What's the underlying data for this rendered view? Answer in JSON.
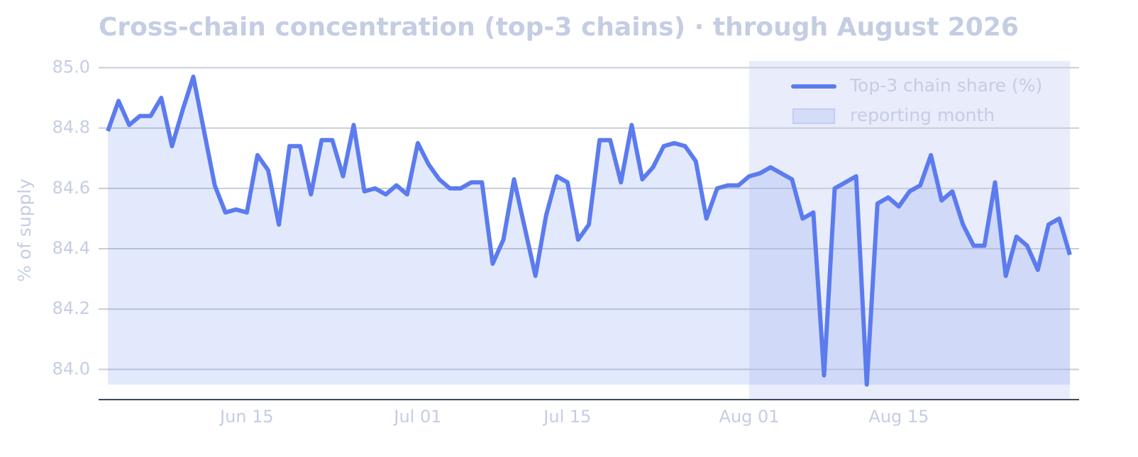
{
  "chart_data": {
    "type": "line",
    "title": "Cross-chain concentration (top-3 chains) · through August 2026",
    "y_label": "% of supply",
    "x": [
      "2026-06-02",
      "2026-06-03",
      "2026-06-04",
      "2026-06-05",
      "2026-06-06",
      "2026-06-07",
      "2026-06-08",
      "2026-06-09",
      "2026-06-10",
      "2026-06-11",
      "2026-06-12",
      "2026-06-13",
      "2026-06-14",
      "2026-06-15",
      "2026-06-16",
      "2026-06-17",
      "2026-06-18",
      "2026-06-19",
      "2026-06-20",
      "2026-06-21",
      "2026-06-22",
      "2026-06-23",
      "2026-06-24",
      "2026-06-25",
      "2026-06-26",
      "2026-06-27",
      "2026-06-28",
      "2026-06-29",
      "2026-06-30",
      "2026-07-01",
      "2026-07-02",
      "2026-07-03",
      "2026-07-04",
      "2026-07-05",
      "2026-07-06",
      "2026-07-07",
      "2026-07-08",
      "2026-07-09",
      "2026-07-10",
      "2026-07-11",
      "2026-07-12",
      "2026-07-13",
      "2026-07-14",
      "2026-07-15",
      "2026-07-16",
      "2026-07-17",
      "2026-07-18",
      "2026-07-19",
      "2026-07-20",
      "2026-07-21",
      "2026-07-22",
      "2026-07-23",
      "2026-07-24",
      "2026-07-25",
      "2026-07-26",
      "2026-07-27",
      "2026-07-28",
      "2026-07-29",
      "2026-07-30",
      "2026-07-31",
      "2026-08-01",
      "2026-08-02",
      "2026-08-03",
      "2026-08-04",
      "2026-08-05",
      "2026-08-06",
      "2026-08-07",
      "2026-08-08",
      "2026-08-09",
      "2026-08-10",
      "2026-08-11",
      "2026-08-12",
      "2026-08-13",
      "2026-08-14",
      "2026-08-15",
      "2026-08-16",
      "2026-08-17",
      "2026-08-18",
      "2026-08-19",
      "2026-08-20",
      "2026-08-21",
      "2026-08-22",
      "2026-08-23",
      "2026-08-24",
      "2026-08-25",
      "2026-08-26",
      "2026-08-27",
      "2026-08-28",
      "2026-08-29",
      "2026-08-30",
      "2026-08-31"
    ],
    "series": [
      {
        "name": "Top-3 chain share (%)",
        "color": "#5b7bef",
        "values": [
          84.79,
          84.89,
          84.81,
          84.84,
          84.84,
          84.9,
          84.74,
          84.86,
          84.97,
          84.79,
          84.61,
          84.52,
          84.53,
          84.52,
          84.71,
          84.66,
          84.48,
          84.74,
          84.74,
          84.58,
          84.76,
          84.76,
          84.64,
          84.81,
          84.59,
          84.6,
          84.58,
          84.61,
          84.58,
          84.75,
          84.68,
          84.63,
          84.6,
          84.6,
          84.62,
          84.62,
          84.35,
          84.43,
          84.63,
          84.47,
          84.31,
          84.51,
          84.64,
          84.62,
          84.43,
          84.48,
          84.76,
          84.76,
          84.62,
          84.81,
          84.63,
          84.67,
          84.74,
          84.75,
          84.74,
          84.69,
          84.5,
          84.6,
          84.61,
          84.61,
          84.64,
          84.65,
          84.67,
          84.65,
          84.63,
          84.5,
          84.52,
          83.98,
          84.6,
          84.62,
          84.64,
          83.95,
          84.55,
          84.57,
          84.54,
          84.59,
          84.61,
          84.71,
          84.56,
          84.59,
          84.48,
          84.41,
          84.41,
          84.62,
          84.31,
          84.44,
          84.41,
          84.33,
          84.48,
          84.5,
          84.38
        ]
      }
    ],
    "highlight": {
      "start": "2026-08-01",
      "end": "2026-08-31",
      "label": "reporting month",
      "color": "#d5dcf8"
    },
    "xticks": [
      {
        "value": "2026-06-15",
        "label": "Jun 15"
      },
      {
        "value": "2026-07-01",
        "label": "Jul 01"
      },
      {
        "value": "2026-07-15",
        "label": "Jul 15"
      },
      {
        "value": "2026-08-01",
        "label": "Aug 01"
      },
      {
        "value": "2026-08-15",
        "label": "Aug 15"
      }
    ],
    "ylim": [
      83.9,
      85.02
    ],
    "yticks": [
      {
        "value": 84,
        "label": "84.0"
      },
      84.2,
      84.4,
      84.6,
      84.8,
      {
        "value": 85,
        "label": "85.0"
      }
    ],
    "grid": true,
    "legend": "upper right"
  }
}
